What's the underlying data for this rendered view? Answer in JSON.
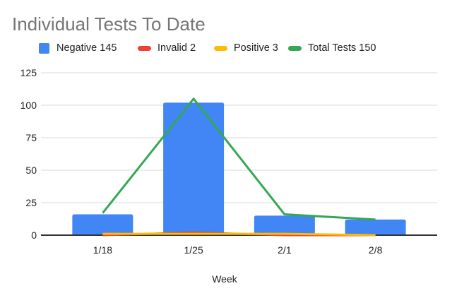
{
  "chart_data": {
    "type": "combo",
    "title": "Individual Tests To Date",
    "title_color": "#757575",
    "xlabel": "Week",
    "categories": [
      "1/18",
      "1/25",
      "2/1",
      "2/8"
    ],
    "series": [
      {
        "name": "Negative 145",
        "type": "bar",
        "color": "#4285F4",
        "values": [
          16,
          102,
          15,
          12
        ]
      },
      {
        "name": "Invalid 2",
        "type": "line",
        "color": "#EA4335",
        "values": [
          0,
          2,
          0,
          0
        ]
      },
      {
        "name": "Positive 3",
        "type": "line",
        "color": "#FBBC04",
        "values": [
          1,
          1,
          1,
          0
        ]
      },
      {
        "name": "Total Tests 150",
        "type": "line",
        "color": "#34A853",
        "values": [
          17,
          105,
          16,
          12
        ]
      }
    ],
    "ylim": [
      0,
      125
    ],
    "yticks": [
      0,
      25,
      50,
      75,
      100,
      125
    ],
    "grid": true,
    "legend_position": "top",
    "axis_color": "#333333",
    "grid_color": "#e0e0e0",
    "label_color": "#202124"
  }
}
